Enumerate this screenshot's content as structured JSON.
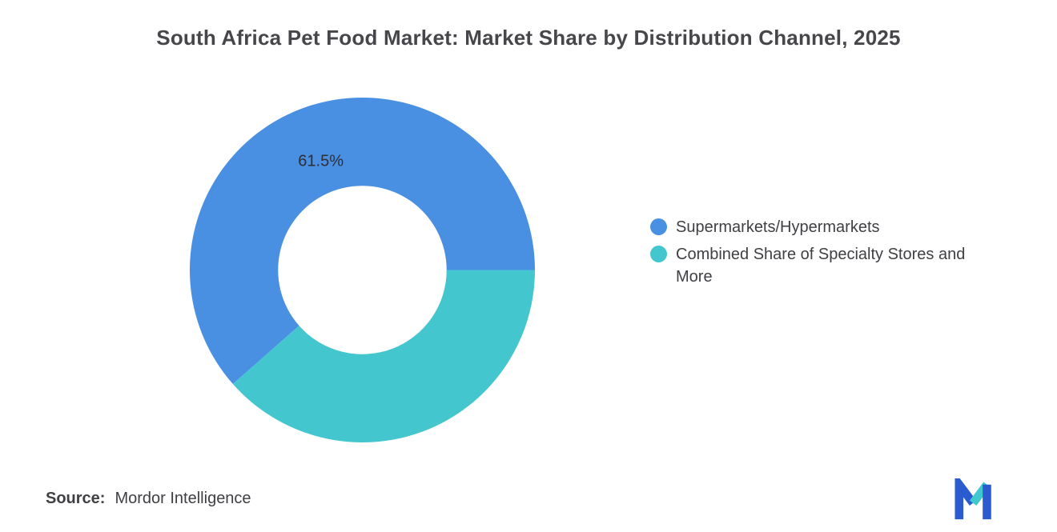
{
  "page": {
    "source_label": "Source:",
    "source_value": "Mordor Intelligence"
  },
  "colors": {
    "primary_blue": "#4A90E2",
    "teal": "#43C6CE",
    "title_text": "#46464B",
    "body_text": "#3F3F44",
    "label_text": "#2E2E33",
    "logo_blue": "#2A5CD0",
    "logo_teal": "#3FC8CE"
  },
  "chart_data": {
    "type": "pie",
    "subtype": "donut",
    "title": "South Africa Pet Food Market: Market Share by Distribution Channel, 2025",
    "legend_position": "right",
    "inner_radius_ratio": 0.49,
    "start_angle_deg": 0,
    "direction": "counterclockwise",
    "slices": [
      {
        "label": "Supermarkets/Hypermarkets",
        "value": 61.5,
        "color": "#4A90E2",
        "data_label": "61.5%"
      },
      {
        "label": "Combined Share of Specialty Stores and More",
        "value": 38.5,
        "color": "#43C6CE",
        "data_label": ""
      }
    ]
  }
}
